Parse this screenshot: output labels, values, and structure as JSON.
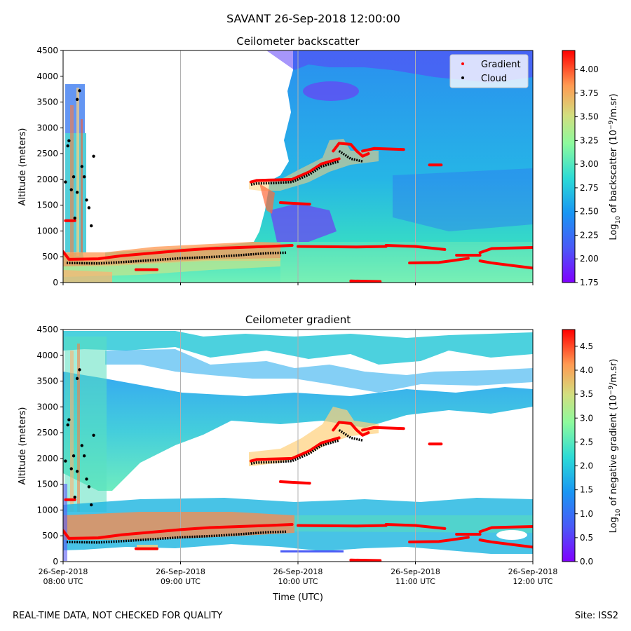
{
  "figure": {
    "suptitle": "SAVANT 26-Sep-2018 12:00:00",
    "footer_left": "REAL-TIME DATA, NOT CHECKED FOR QUALITY",
    "footer_right": "Site: ISS2"
  },
  "chart_data": [
    {
      "type": "heatmap",
      "title": "Ceilometer backscatter",
      "xlabel": "",
      "ylabel": "Altitude (meters)",
      "xlim": [
        "2018-09-26T08:00",
        "2018-09-26T12:00"
      ],
      "ylim": [
        0,
        4500
      ],
      "yticks": [
        0,
        500,
        1000,
        1500,
        2000,
        2500,
        3000,
        3500,
        4000,
        4500
      ],
      "grid": "vertical-only",
      "colormap": "rainbow",
      "colorbar": {
        "label_pre": "Log",
        "label_sub": "10",
        "label_mid": " of backscatter (10",
        "label_sup": "−9",
        "label_post": "/m.sr)",
        "range": [
          1.75,
          4.2
        ],
        "ticks": [
          1.75,
          2.0,
          2.25,
          2.5,
          2.75,
          3.0,
          3.25,
          3.5,
          3.75,
          4.0
        ],
        "tick_labels": [
          "1.75",
          "2.00",
          "2.25",
          "2.50",
          "2.75",
          "3.00",
          "3.25",
          "3.50",
          "3.75",
          "4.00"
        ]
      },
      "legend": {
        "placement": "upper-right",
        "entries": [
          {
            "label": "Gradient",
            "color": "#ff0000"
          },
          {
            "label": "Cloud",
            "color": "#000000"
          }
        ]
      },
      "gradient_segments": [
        {
          "x": [
            0.0,
            0.05,
            0.3,
            0.5,
            0.8,
            1.0,
            1.25
          ],
          "y": [
            600,
            450,
            460,
            520,
            580,
            620,
            660
          ]
        },
        {
          "x": [
            1.25,
            1.5,
            1.75,
            1.95
          ],
          "y": [
            660,
            680,
            700,
            720
          ]
        },
        {
          "x": [
            2.0,
            2.5,
            2.75
          ],
          "y": [
            700,
            690,
            700
          ]
        },
        {
          "x": [
            2.75,
            3.0,
            3.25
          ],
          "y": [
            720,
            700,
            640
          ]
        },
        {
          "x": [
            2.95,
            3.2,
            3.3,
            3.45
          ],
          "y": [
            380,
            390,
            420,
            470
          ]
        },
        {
          "x": [
            3.35,
            3.55
          ],
          "y": [
            530,
            530
          ]
        },
        {
          "x": [
            3.55,
            3.65,
            4.0
          ],
          "y": [
            580,
            660,
            680
          ]
        },
        {
          "x": [
            3.55,
            3.65,
            4.0
          ],
          "y": [
            420,
            380,
            280
          ]
        },
        {
          "x": [
            0.62,
            0.8
          ],
          "y": [
            250,
            250
          ]
        },
        {
          "x": [
            1.6,
            1.65,
            1.8,
            1.95,
            2.1,
            2.2,
            2.35
          ],
          "y": [
            1950,
            1980,
            1990,
            2000,
            2150,
            2300,
            2400
          ]
        },
        {
          "x": [
            2.3,
            2.35,
            2.45,
            2.5,
            2.55,
            2.6
          ],
          "y": [
            2550,
            2700,
            2680,
            2550,
            2450,
            2500
          ]
        },
        {
          "x": [
            2.55,
            2.65,
            2.9
          ],
          "y": [
            2550,
            2600,
            2580
          ]
        },
        {
          "x": [
            1.85,
            2.1
          ],
          "y": [
            1550,
            1520
          ]
        },
        {
          "x": [
            3.12,
            3.22
          ],
          "y": [
            2280,
            2280
          ]
        },
        {
          "x": [
            2.45,
            2.7
          ],
          "y": [
            30,
            20
          ]
        },
        {
          "x": [
            0.02,
            0.1
          ],
          "y": [
            1200,
            1200
          ]
        }
      ],
      "cloud_segments": [
        {
          "x": [
            0.03,
            0.3,
            0.6,
            1.0,
            1.3,
            1.5,
            1.75,
            1.9
          ],
          "y": [
            380,
            370,
            410,
            470,
            500,
            530,
            570,
            580
          ]
        },
        {
          "x": [
            1.6,
            1.65,
            1.8,
            1.95,
            2.1,
            2.2,
            2.35
          ],
          "y": [
            1900,
            1920,
            1930,
            1950,
            2100,
            2250,
            2350
          ]
        },
        {
          "x": [
            2.35,
            2.45,
            2.55
          ],
          "y": [
            2550,
            2400,
            2350
          ]
        }
      ],
      "cloud_points": [
        {
          "x": 0.02,
          "y": 1950
        },
        {
          "x": 0.04,
          "y": 2650
        },
        {
          "x": 0.05,
          "y": 2750
        },
        {
          "x": 0.07,
          "y": 1800
        },
        {
          "x": 0.1,
          "y": 1250
        },
        {
          "x": 0.12,
          "y": 3550
        },
        {
          "x": 0.14,
          "y": 3720
        },
        {
          "x": 0.16,
          "y": 2250
        },
        {
          "x": 0.18,
          "y": 2050
        },
        {
          "x": 0.2,
          "y": 1600
        },
        {
          "x": 0.22,
          "y": 1450
        },
        {
          "x": 0.24,
          "y": 1100
        },
        {
          "x": 0.26,
          "y": 2450
        },
        {
          "x": 0.12,
          "y": 1750
        },
        {
          "x": 0.09,
          "y": 2050
        }
      ]
    },
    {
      "type": "heatmap",
      "title": "Ceilometer gradient",
      "xlabel": "Time (UTC)",
      "ylabel": "Altitude (meters)",
      "xlim": [
        "2018-09-26T08:00",
        "2018-09-26T12:00"
      ],
      "ylim": [
        0,
        4500
      ],
      "yticks": [
        0,
        500,
        1000,
        1500,
        2000,
        2500,
        3000,
        3500,
        4000,
        4500
      ],
      "xticks": [
        {
          "line1": "26-Sep-2018",
          "line2": "08:00 UTC"
        },
        {
          "line1": "26-Sep-2018",
          "line2": "09:00 UTC"
        },
        {
          "line1": "26-Sep-2018",
          "line2": "10:00 UTC"
        },
        {
          "line1": "26-Sep-2018",
          "line2": "11:00 UTC"
        },
        {
          "line1": "26-Sep-2018",
          "line2": "12:00 UTC"
        }
      ],
      "grid": "vertical-only",
      "colormap": "rainbow",
      "colorbar": {
        "label_pre": "Log",
        "label_sub": "10",
        "label_mid": " of negative gradient (10",
        "label_sup": "−9",
        "label_post": "/m.sr)",
        "range": [
          0.0,
          4.85
        ],
        "ticks": [
          0.0,
          0.5,
          1.0,
          1.5,
          2.0,
          2.5,
          3.0,
          3.5,
          4.0,
          4.5
        ],
        "tick_labels": [
          "0.0",
          "0.5",
          "1.0",
          "1.5",
          "2.0",
          "2.5",
          "3.0",
          "3.5",
          "4.0",
          "4.5"
        ]
      }
    }
  ]
}
